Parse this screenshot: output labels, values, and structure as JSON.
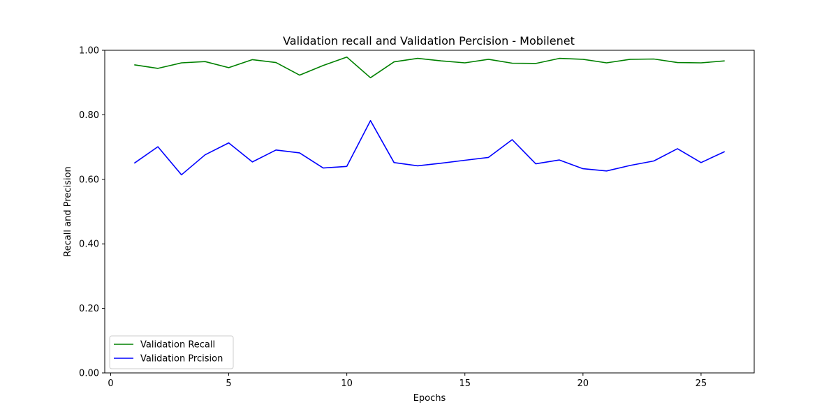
{
  "chart_data": {
    "type": "line",
    "title": "Validation recall and Validation Percision - Mobilenet",
    "xlabel": "Epochs",
    "ylabel": "Recall and Precision",
    "xlim": [
      -0.25,
      27.25
    ],
    "ylim": [
      0,
      1
    ],
    "xticks": [
      0,
      5,
      10,
      15,
      20,
      25
    ],
    "xtick_labels": [
      "0",
      "5",
      "10",
      "15",
      "20",
      "25"
    ],
    "yticks": [
      0,
      0.2,
      0.4,
      0.6,
      0.8,
      1.0
    ],
    "ytick_labels": [
      "0.00",
      "0.20",
      "0.40",
      "0.60",
      "0.80",
      "1.00"
    ],
    "grid": false,
    "legend_position": "lower-left",
    "x": [
      1,
      2,
      3,
      4,
      5,
      6,
      7,
      8,
      9,
      10,
      11,
      12,
      13,
      14,
      15,
      16,
      17,
      18,
      19,
      20,
      21,
      22,
      23,
      24,
      25,
      26
    ],
    "series": [
      {
        "name": "Validation Recall",
        "color": "#008000",
        "values": [
          0.955,
          0.944,
          0.961,
          0.965,
          0.946,
          0.971,
          0.962,
          0.923,
          0.953,
          0.979,
          0.915,
          0.964,
          0.975,
          0.967,
          0.961,
          0.972,
          0.96,
          0.959,
          0.975,
          0.972,
          0.961,
          0.972,
          0.973,
          0.962,
          0.961,
          0.967
        ]
      },
      {
        "name": "Validation Prcision",
        "color": "#0000ff",
        "values": [
          0.65,
          0.701,
          0.614,
          0.676,
          0.713,
          0.654,
          0.691,
          0.682,
          0.635,
          0.64,
          0.782,
          0.652,
          0.642,
          0.65,
          0.659,
          0.668,
          0.723,
          0.648,
          0.66,
          0.633,
          0.626,
          0.643,
          0.657,
          0.695,
          0.652,
          0.686
        ]
      }
    ]
  }
}
